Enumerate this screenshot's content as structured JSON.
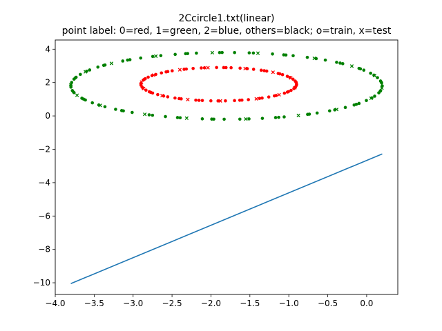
{
  "chart_data": {
    "type": "scatter",
    "title": "2Ccircle1.txt(linear)",
    "subtitle": "point label: 0=red, 1=green, 2=blue, others=black; o=train, x=test",
    "xlabel": "",
    "ylabel": "",
    "xlim": [
      -4.0,
      0.4
    ],
    "ylim": [
      -10.7,
      4.55
    ],
    "xticks": [
      -4.0,
      -3.5,
      -3.0,
      -2.5,
      -2.0,
      -1.5,
      -1.0,
      -0.5,
      0.0
    ],
    "xtick_labels": [
      "−4.0",
      "−3.5",
      "−3.0",
      "−2.5",
      "−2.0",
      "−1.5",
      "−1.0",
      "−0.5",
      "0.0"
    ],
    "yticks": [
      4,
      2,
      0,
      -2,
      -4,
      -6,
      -8,
      -10
    ],
    "ytick_labels": [
      "4",
      "2",
      "0",
      "−2",
      "−4",
      "−6",
      "−8",
      "−10"
    ],
    "grid": false,
    "colors": {
      "red": "#ff0000",
      "green": "#008000",
      "line": "#1f77b4"
    },
    "series": [
      {
        "label": 0,
        "color": "#ff0000",
        "shape": "ellipse",
        "center": [
          -1.9,
          1.9
        ],
        "radii": [
          1.0,
          1.0
        ],
        "train_points": 72,
        "test_points": 14
      },
      {
        "label": 1,
        "color": "#008000",
        "shape": "ellipse",
        "center": [
          -1.8,
          1.8
        ],
        "radii": [
          2.0,
          2.0
        ],
        "train_points": 90,
        "test_points": 18
      }
    ],
    "line": {
      "color": "#1f77b4",
      "x": [
        -3.8,
        0.2
      ],
      "y": [
        -10.05,
        -2.28
      ]
    }
  }
}
